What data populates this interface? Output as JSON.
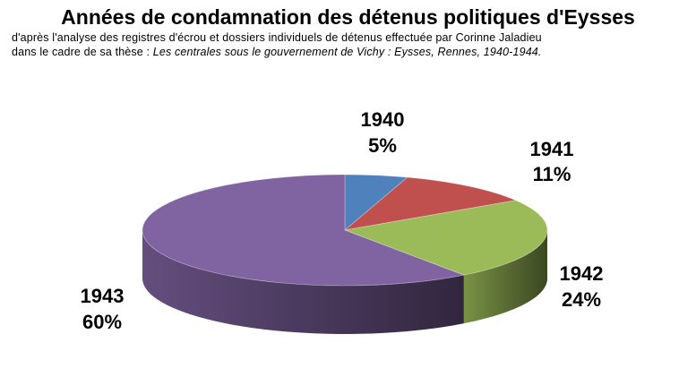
{
  "title": "Années de condamnation des détenus politiques d'Eysses",
  "subtitle_line1": "d'après l'analyse des registres d'écrou et dossiers  individuels de détenus effectuée par Corinne Jaladieu",
  "subtitle_line2_prefix": "dans le cadre de sa thèse : ",
  "subtitle_line2_italic": "Les centrales sous le gouvernement de Vichy : Eysses, Rennes, 1940-1944.",
  "chart_data": {
    "type": "pie",
    "style": "3d",
    "slices": [
      {
        "label": "1940",
        "value": 5,
        "value_label": "5%",
        "color": "#4f81bd"
      },
      {
        "label": "1941",
        "value": 11,
        "value_label": "11%",
        "color": "#c0504d"
      },
      {
        "label": "1942",
        "value": 24,
        "value_label": "24%",
        "color": "#9bbb59"
      },
      {
        "label": "1943",
        "value": 60,
        "value_label": "60%",
        "color": "#8064a2"
      }
    ]
  }
}
